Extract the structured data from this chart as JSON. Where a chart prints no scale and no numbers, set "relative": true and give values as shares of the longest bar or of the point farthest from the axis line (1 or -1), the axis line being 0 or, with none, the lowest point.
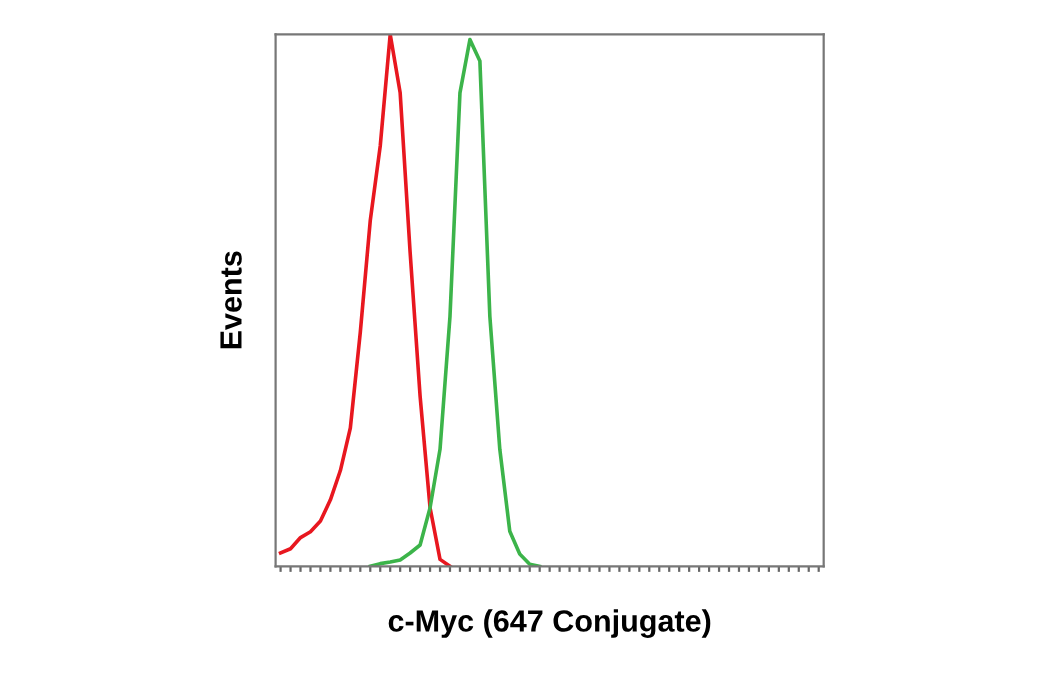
{
  "chart_data": {
    "type": "line",
    "relative": true,
    "xlabel": "c-Myc (647 Conjugate)",
    "ylabel": "Events",
    "categories": [
      null,
      null,
      null,
      null,
      null,
      null,
      null,
      null,
      null,
      null,
      null,
      null,
      null,
      null,
      null,
      null,
      null,
      null,
      null,
      null,
      null,
      null,
      null,
      null,
      null,
      null,
      null,
      null,
      null,
      null,
      null,
      null,
      null,
      null,
      null,
      null,
      null,
      null,
      null,
      null,
      null,
      null,
      null,
      null,
      null,
      null,
      null,
      null,
      null,
      null,
      null,
      null,
      null,
      null,
      null
    ],
    "series": [
      {
        "color": "#e8171f",
        "values": [
          0.025,
          0.033,
          0.054,
          0.065,
          0.085,
          0.125,
          0.18,
          0.26,
          0.44,
          0.65,
          0.79,
          1.0,
          0.89,
          0.59,
          0.32,
          0.11,
          0.013,
          0,
          null,
          null,
          null,
          null,
          null,
          null,
          null,
          null,
          null,
          null,
          null,
          null,
          null,
          null,
          null,
          null,
          null,
          null,
          null,
          null,
          null,
          null,
          null,
          null,
          null,
          null,
          null,
          null,
          null,
          null,
          null,
          null,
          null,
          null,
          null,
          null,
          null
        ]
      },
      {
        "color": "#3cb44a",
        "values": [
          null,
          null,
          null,
          null,
          null,
          null,
          null,
          null,
          null,
          0,
          0.005,
          0.008,
          0.012,
          0.025,
          0.04,
          0.11,
          0.22,
          0.47,
          0.89,
          0.99,
          0.95,
          0.47,
          0.22,
          0.066,
          0.023,
          0.004,
          0,
          null,
          null,
          null,
          null,
          null,
          null,
          null,
          null,
          null,
          null,
          null,
          null,
          null,
          null,
          null,
          null,
          null,
          null,
          null,
          null,
          null,
          null,
          null,
          null,
          null,
          null,
          null,
          null
        ]
      }
    ],
    "grid": false,
    "legend": false
  }
}
